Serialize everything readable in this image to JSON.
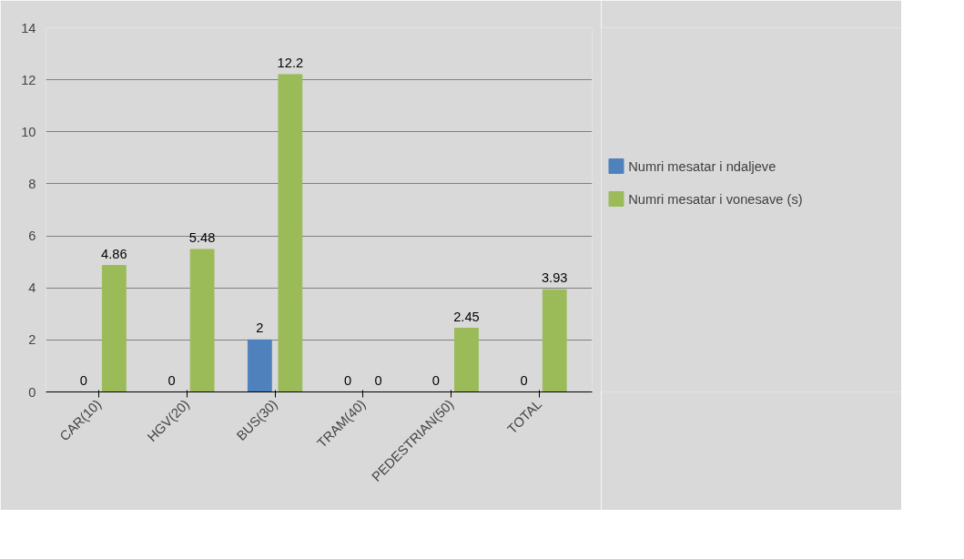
{
  "chart_data": {
    "type": "bar",
    "categories": [
      "CAR(10)",
      "HGV(20)",
      "BUS(30)",
      "TRAM(40)",
      "PEDESTRIAN(50)",
      "TOTAL"
    ],
    "series": [
      {
        "name": "Numri mesatar i ndaljeve",
        "color": "#4f81bd",
        "values": [
          0,
          0,
          2,
          0,
          0,
          0
        ]
      },
      {
        "name": "Numri mesatar i vonesave (s)",
        "color": "#9bbb59",
        "values": [
          4.86,
          5.48,
          12.2,
          0,
          2.45,
          3.93
        ]
      }
    ],
    "ylim": [
      0,
      14
    ],
    "yticks": [
      0,
      2,
      4,
      6,
      8,
      10,
      12,
      14
    ],
    "grid": "y",
    "legend": "right",
    "data_labels": true
  }
}
